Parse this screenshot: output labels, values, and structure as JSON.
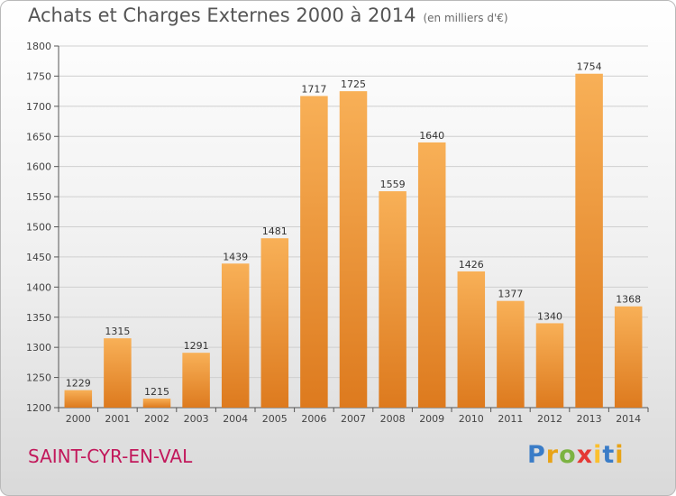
{
  "title": "Achats et Charges Externes 2000 à 2014",
  "subtitle": "(en milliers d'€)",
  "location": "SAINT-CYR-EN-VAL",
  "logo": {
    "letters": [
      "P",
      "r",
      "o",
      "x",
      "i",
      "t",
      "i"
    ],
    "colors": [
      "#3a7cc7",
      "#e8a317",
      "#7cb342",
      "#e53935",
      "#fbc02d",
      "#3a7cc7",
      "#e8a317"
    ]
  },
  "colors": {
    "bar_light": "#f8b057",
    "bar_dark": "#dd7a1e",
    "location": "#c2185b"
  },
  "chart_data": {
    "type": "bar",
    "categories": [
      "2000",
      "2001",
      "2002",
      "2003",
      "2004",
      "2005",
      "2006",
      "2007",
      "2008",
      "2009",
      "2010",
      "2011",
      "2012",
      "2013",
      "2014"
    ],
    "values": [
      1229,
      1315,
      1215,
      1291,
      1439,
      1481,
      1717,
      1725,
      1559,
      1640,
      1426,
      1377,
      1340,
      1754,
      1368
    ],
    "ylim": [
      1200,
      1800
    ],
    "yticks": [
      1200,
      1250,
      1300,
      1350,
      1400,
      1450,
      1500,
      1550,
      1600,
      1650,
      1700,
      1750,
      1800
    ],
    "grid": true
  }
}
